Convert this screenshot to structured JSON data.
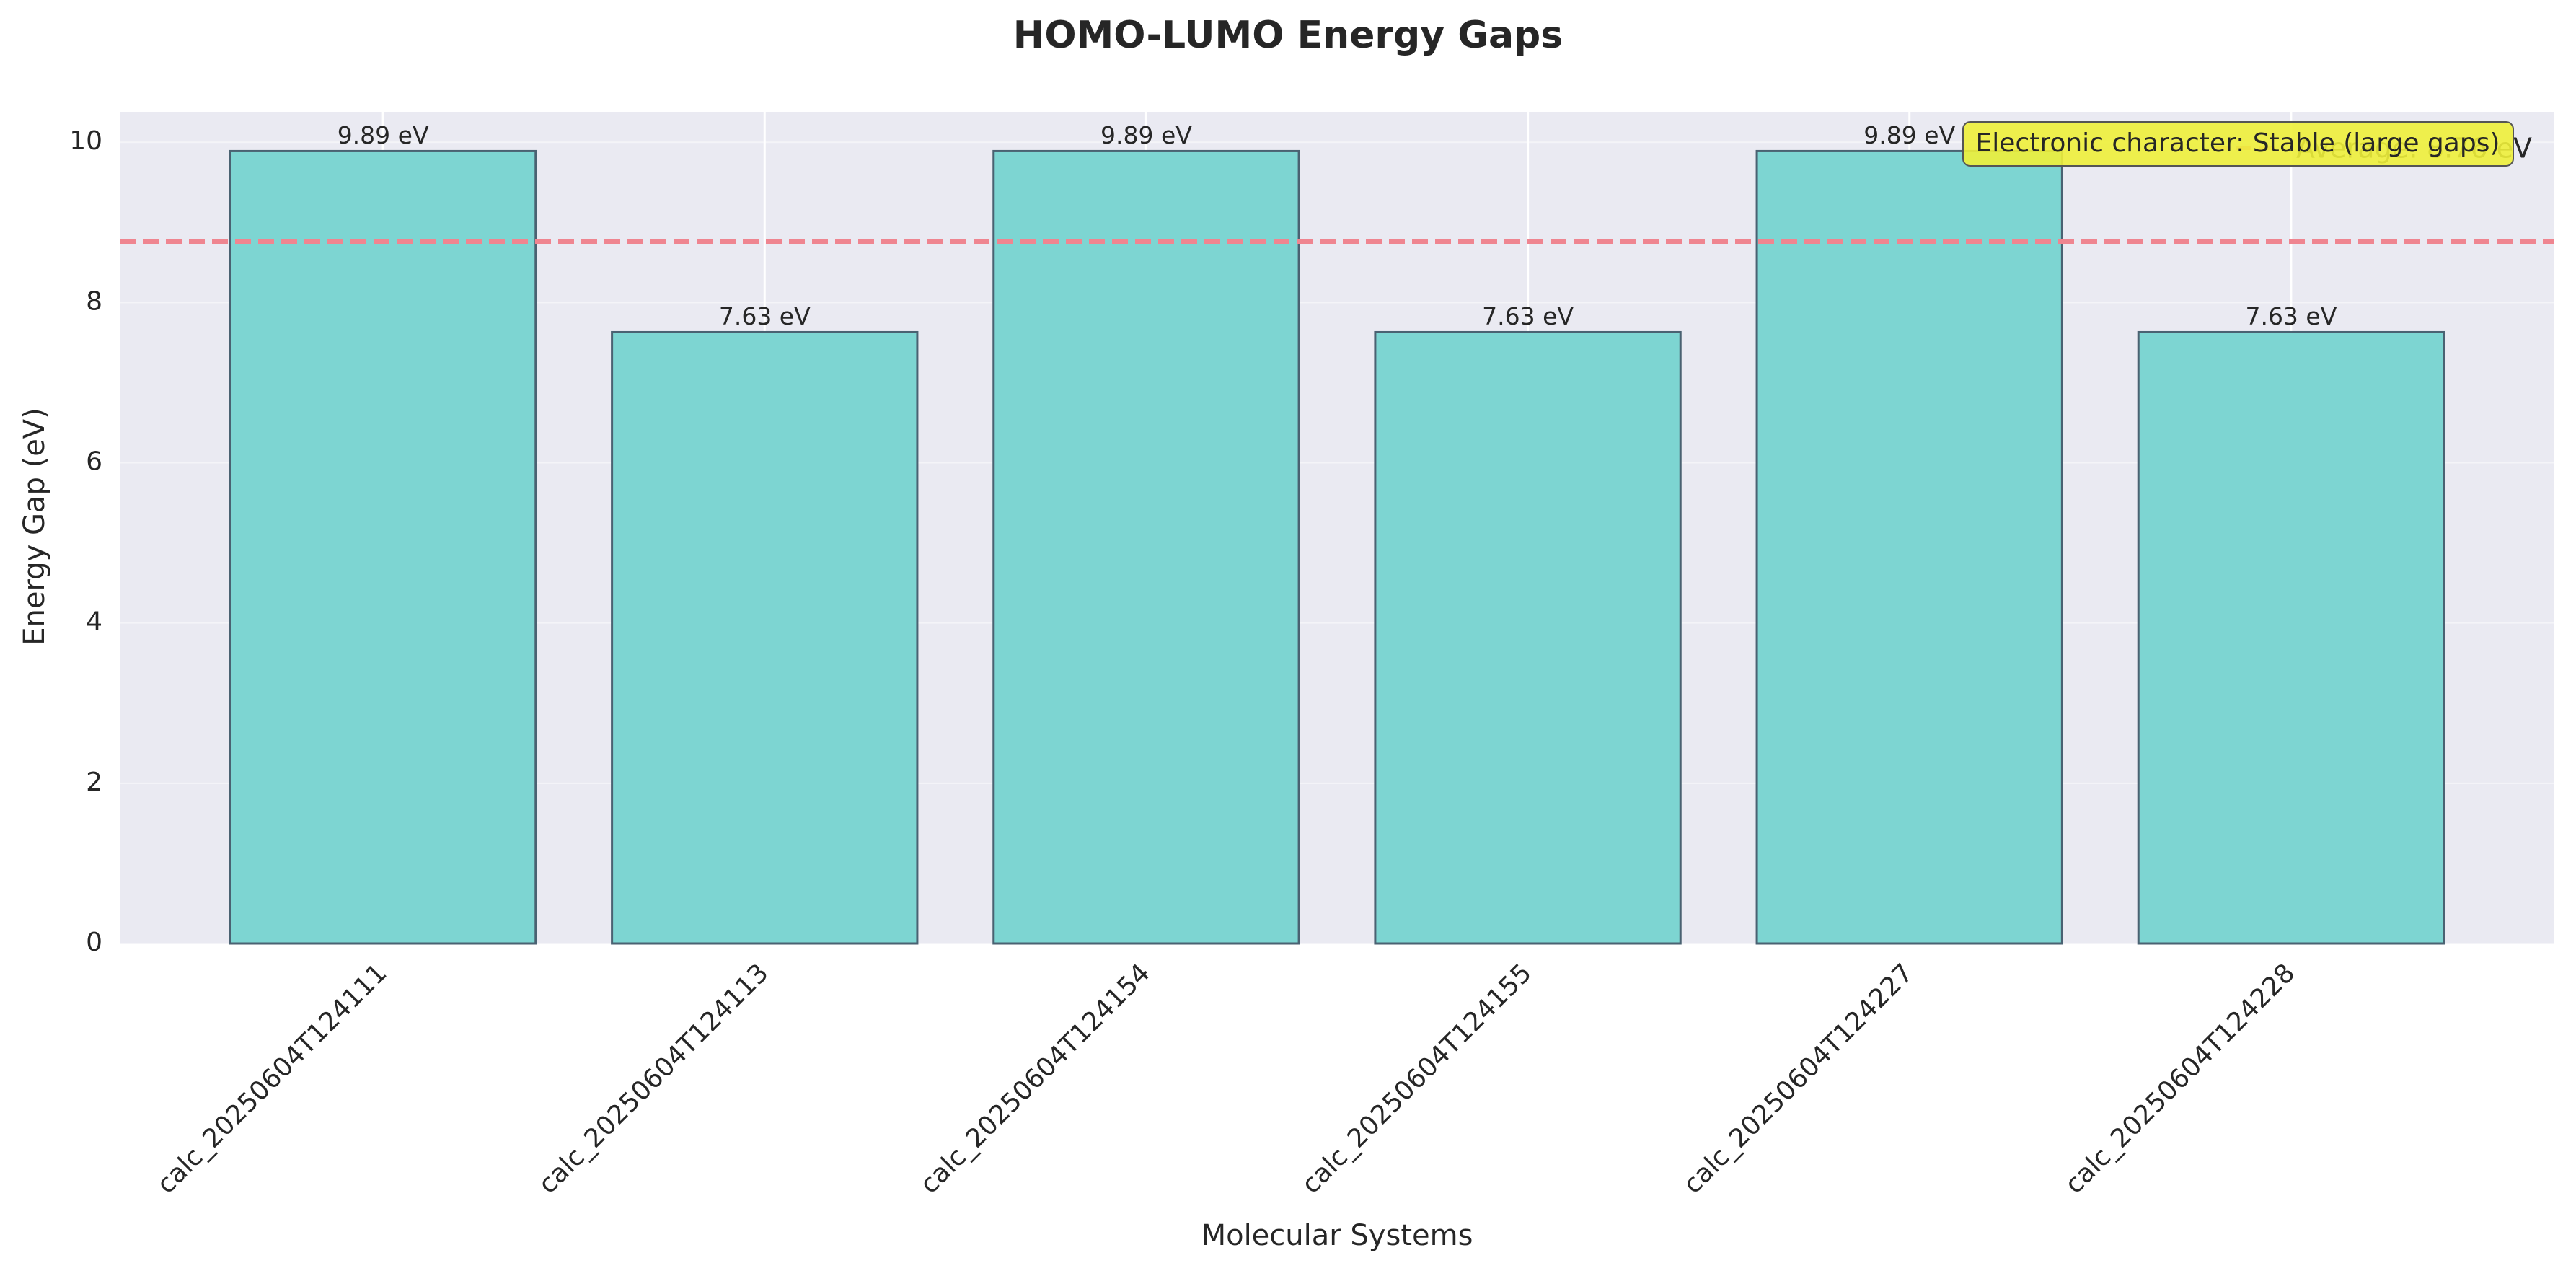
{
  "chart_data": {
    "type": "bar",
    "title": "HOMO-LUMO Energy Gaps",
    "xlabel": "Molecular Systems",
    "ylabel": "Energy Gap (eV)",
    "categories": [
      "calc_20250604T124111",
      "calc_20250604T124113",
      "calc_20250604T124154",
      "calc_20250604T124155",
      "calc_20250604T124227",
      "calc_20250604T124228"
    ],
    "values": [
      9.89,
      7.63,
      9.89,
      7.63,
      9.89,
      7.63
    ],
    "value_labels": [
      "9.89 eV",
      "7.63 eV",
      "9.89 eV",
      "7.63 eV",
      "9.89 eV",
      "7.63 eV"
    ],
    "color": "#7dd5d2",
    "edge_color": "#4a6272",
    "average": 8.76,
    "average_label": "Average: 8.76 eV",
    "average_color": "#ef8590",
    "annotation": "Electronic character: Stable (large gaps)",
    "ylim": [
      0,
      10.38
    ],
    "yticks": [
      0,
      2,
      4,
      6,
      8,
      10
    ],
    "grid": true,
    "legend": "upper right"
  }
}
